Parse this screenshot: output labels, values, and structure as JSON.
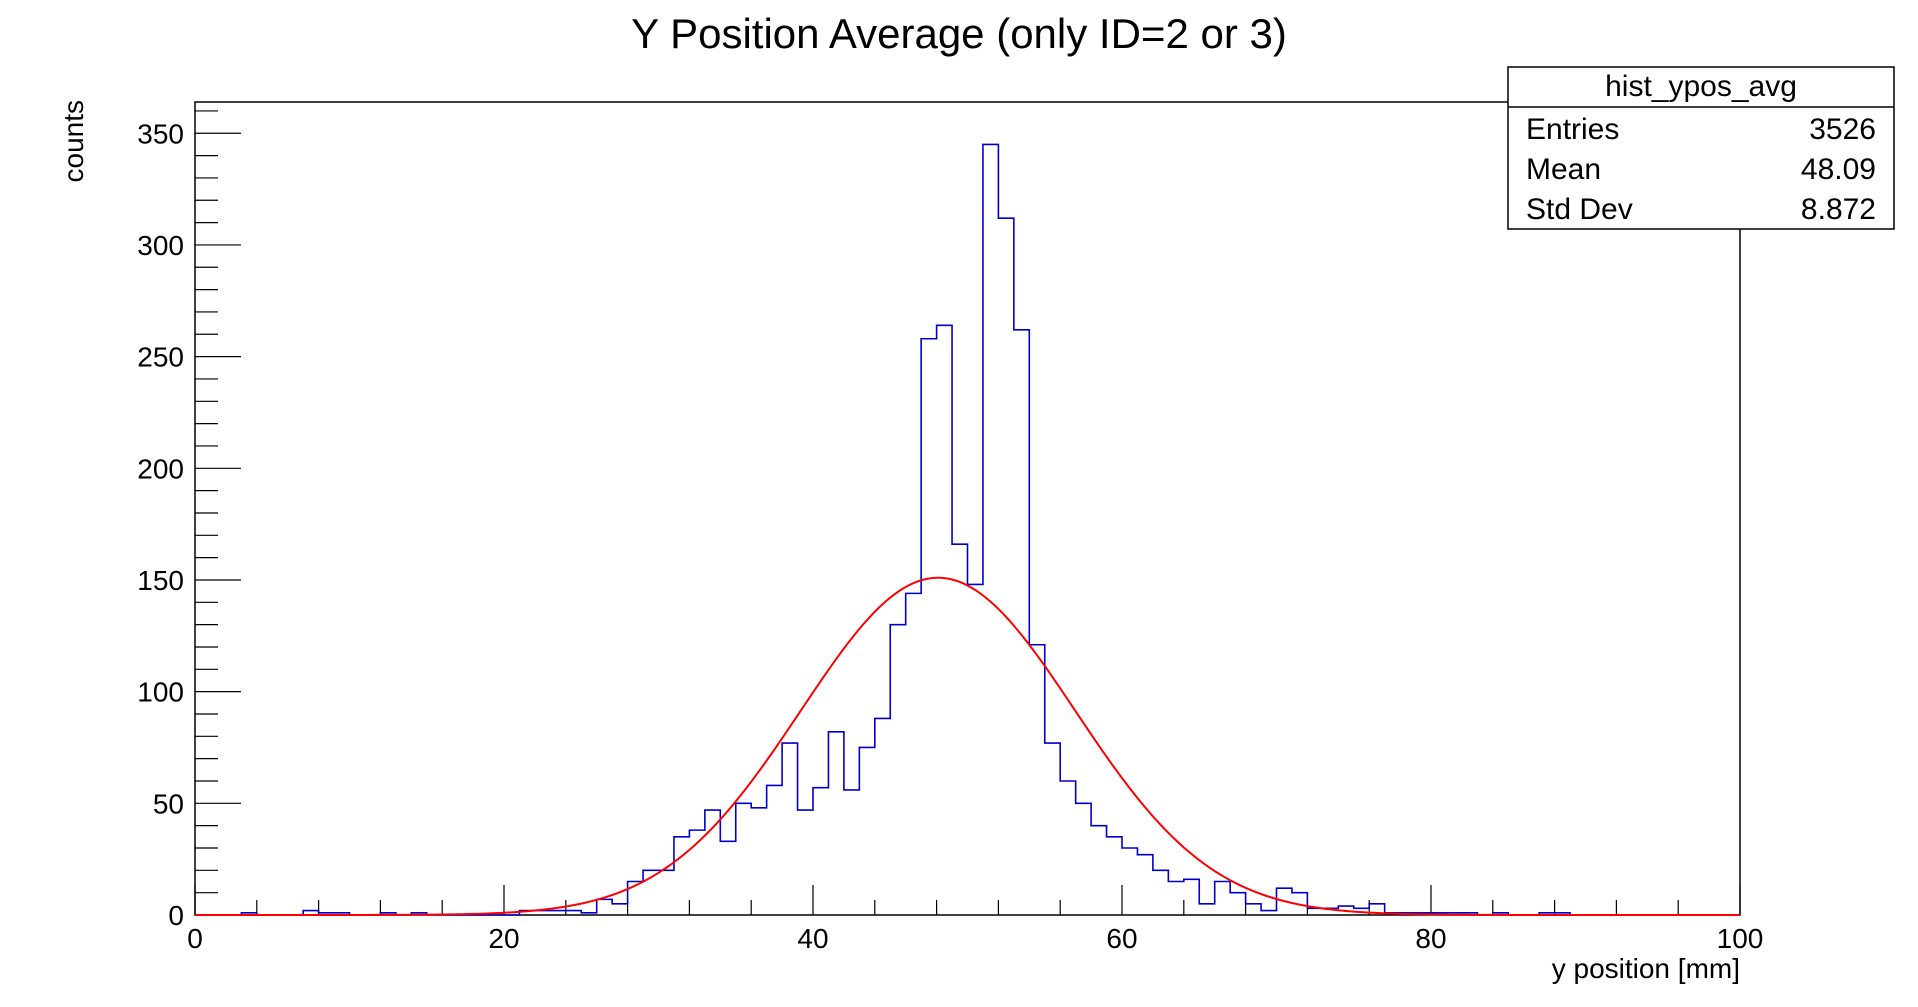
{
  "chart_data": {
    "type": "histogram",
    "title": "Y Position Average (only ID=2 or 3)",
    "xlabel": "y position [mm]",
    "ylabel": "counts",
    "xlim": [
      0,
      100
    ],
    "ylim": [
      0,
      364
    ],
    "x_ticks": [
      "0",
      "20",
      "40",
      "60",
      "80",
      "100"
    ],
    "y_ticks": [
      "0",
      "50",
      "100",
      "150",
      "200",
      "250",
      "300",
      "350"
    ],
    "x_tick_values": [
      0,
      20,
      40,
      60,
      80,
      100
    ],
    "y_tick_values": [
      0,
      50,
      100,
      150,
      200,
      250,
      300,
      350
    ],
    "grid": false,
    "histogram": {
      "name": "hist_ypos_avg",
      "color": "#0000cc",
      "bin_low": 0,
      "bin_width": 1,
      "counts": [
        0,
        0,
        0,
        1,
        0,
        0,
        0,
        2,
        1,
        1,
        0,
        0,
        1,
        0,
        1,
        0,
        0,
        0,
        0,
        0,
        0,
        2,
        2,
        2,
        2,
        1,
        7,
        5,
        15,
        20,
        20,
        35,
        38,
        47,
        33,
        50,
        48,
        58,
        77,
        47,
        57,
        82,
        56,
        75,
        88,
        130,
        144,
        258,
        264,
        166,
        148,
        345,
        312,
        262,
        121,
        77,
        60,
        50,
        40,
        35,
        30,
        27,
        20,
        15,
        16,
        5,
        15,
        10,
        5,
        2,
        12,
        10,
        3,
        3,
        4,
        3,
        5,
        1,
        1,
        1,
        1,
        1,
        1,
        0,
        1,
        0,
        0,
        1,
        1,
        0,
        0,
        0,
        0,
        0,
        0,
        0,
        0,
        0,
        0,
        0
      ]
    },
    "fit": {
      "color": "#ff0000",
      "type": "gaussian",
      "amplitude": 151,
      "mean": 48.09,
      "sigma": 8.872
    },
    "stats_box": {
      "title": "hist_ypos_avg",
      "rows": [
        {
          "label": "Entries",
          "value": "3526"
        },
        {
          "label": "Mean",
          "value": "48.09"
        },
        {
          "label": "Std Dev",
          "value": "8.872"
        }
      ],
      "placement": "top-right"
    }
  }
}
